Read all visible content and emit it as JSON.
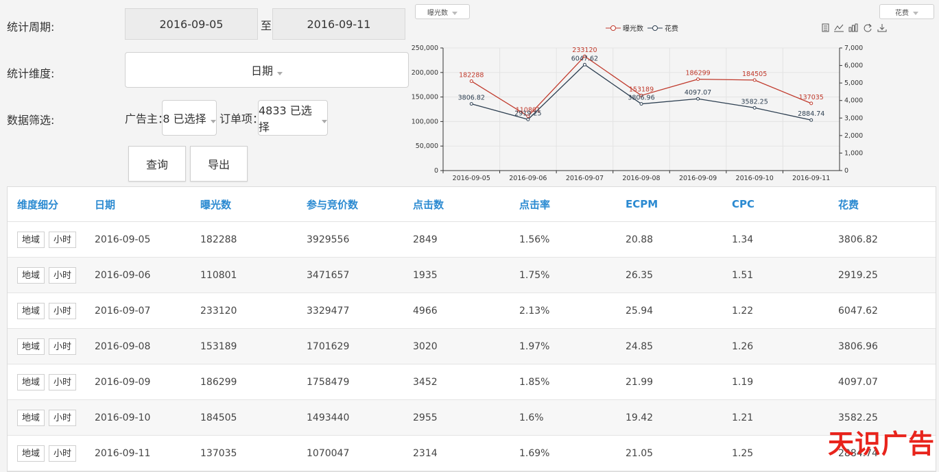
{
  "filters": {
    "period_label": "统计周期:",
    "date_from": "2016-09-05",
    "to_label": "至",
    "date_to": "2016-09-11",
    "dimension_label": "统计维度:",
    "dimension_value": "日期",
    "data_filter_label": "数据筛选:",
    "advertiser_label": "广告主：",
    "advertiser_value": "8 已选择",
    "order_label": "订单项：",
    "order_value": "4833 已选择",
    "query_button": "查询",
    "export_button": "导出"
  },
  "chart_controls": {
    "left_metric": "曝光数",
    "right_metric": "花费",
    "tools": [
      "data-view-icon",
      "line-chart-icon",
      "bar-chart-icon",
      "restore-icon",
      "download-icon"
    ]
  },
  "chart_data": {
    "type": "line",
    "x": [
      "2016-09-05",
      "2016-09-06",
      "2016-09-07",
      "2016-09-08",
      "2016-09-09",
      "2016-09-10",
      "2016-09-11"
    ],
    "series": [
      {
        "name": "曝光数",
        "axis": "left",
        "color": "#c0392b",
        "values": [
          182288,
          110801,
          233120,
          153189,
          186299,
          184505,
          137035
        ]
      },
      {
        "name": "花费",
        "axis": "right",
        "color": "#2c3e50",
        "values": [
          3806.82,
          2919.25,
          6047.62,
          3806.96,
          4097.07,
          3582.25,
          2884.74
        ]
      }
    ],
    "y_left": {
      "range": [
        0,
        250000
      ],
      "ticks": [
        "0",
        "50,000",
        "100,000",
        "150,000",
        "200,000",
        "250,000"
      ]
    },
    "y_right": {
      "range": [
        0,
        7000
      ],
      "ticks": [
        "0",
        "1,000",
        "2,000",
        "3,000",
        "4,000",
        "5,000",
        "6,000",
        "7,000"
      ]
    },
    "grid": true,
    "legend_position": "top-center"
  },
  "table": {
    "headers": [
      "维度细分",
      "日期",
      "曝光数",
      "参与竞价数",
      "点击数",
      "点击率",
      "ECPM",
      "CPC",
      "花费"
    ],
    "region_btn": "地域",
    "hour_btn": "小时",
    "rows": [
      [
        "2016-09-05",
        "182288",
        "3929556",
        "2849",
        "1.56%",
        "20.88",
        "1.34",
        "3806.82"
      ],
      [
        "2016-09-06",
        "110801",
        "3471657",
        "1935",
        "1.75%",
        "26.35",
        "1.51",
        "2919.25"
      ],
      [
        "2016-09-07",
        "233120",
        "3329477",
        "4966",
        "2.13%",
        "25.94",
        "1.22",
        "6047.62"
      ],
      [
        "2016-09-08",
        "153189",
        "1701629",
        "3020",
        "1.97%",
        "24.85",
        "1.26",
        "3806.96"
      ],
      [
        "2016-09-09",
        "186299",
        "1758479",
        "3452",
        "1.85%",
        "21.99",
        "1.19",
        "4097.07"
      ],
      [
        "2016-09-10",
        "184505",
        "1493440",
        "2955",
        "1.6%",
        "19.42",
        "1.21",
        "3582.25"
      ],
      [
        "2016-09-11",
        "137035",
        "1070047",
        "2314",
        "1.69%",
        "21.05",
        "1.25",
        "2884.74"
      ]
    ]
  },
  "watermark": "天识广告"
}
